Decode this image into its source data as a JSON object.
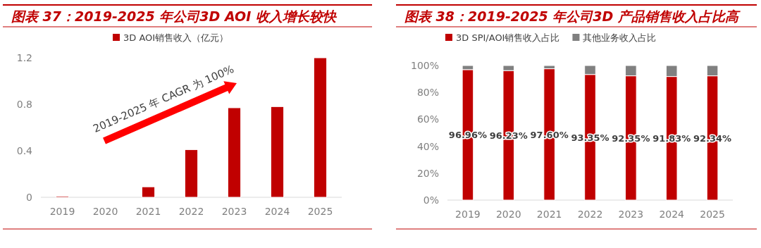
{
  "chart_data": [
    {
      "type": "bar",
      "title": "图表 37：2019-2025 年公司3D AOI 收入增长较快",
      "categories": [
        "2019",
        "2020",
        "2021",
        "2022",
        "2023",
        "2024",
        "2025"
      ],
      "series": [
        {
          "name": "3D AOI销售收入（亿元）",
          "color": "#c00000",
          "values": [
            0.01,
            0,
            0.09,
            0.41,
            0.77,
            0.78,
            1.2
          ]
        }
      ],
      "ylim": [
        0,
        1.2
      ],
      "yticks": [
        0,
        0.4,
        0.8,
        1.2
      ],
      "legend": "top",
      "annotations": [
        "2019-2025 年 CAGR 为 100%"
      ]
    },
    {
      "type": "bar",
      "title": "图表 38：2019-2025 年公司3D 产品销售收入占比高",
      "categories": [
        "2019",
        "2020",
        "2021",
        "2022",
        "2023",
        "2024",
        "2025"
      ],
      "stacked": true,
      "series": [
        {
          "name": "3D SPI/AOI销售收入占比",
          "color": "#c00000",
          "values": [
            96.96,
            96.23,
            97.6,
            93.35,
            92.35,
            91.83,
            92.34
          ],
          "value_labels": [
            "96.96%",
            "96.23%",
            "97.60%",
            "93.35%",
            "92.35%",
            "91.83%",
            "92.34%"
          ]
        },
        {
          "name": "其他业务收入占比",
          "color": "#808080",
          "values": [
            3.04,
            3.77,
            2.4,
            6.65,
            7.65,
            8.17,
            7.66
          ]
        }
      ],
      "ylim": [
        0,
        100
      ],
      "yticks": [
        {
          "value": 0,
          "label": "0%"
        },
        {
          "value": 20,
          "label": "20%"
        },
        {
          "value": 40,
          "label": "40%"
        },
        {
          "value": 60,
          "label": "60%"
        },
        {
          "value": 80,
          "label": "80%"
        },
        {
          "value": 100,
          "label": "100%"
        }
      ],
      "legend": "top"
    }
  ]
}
